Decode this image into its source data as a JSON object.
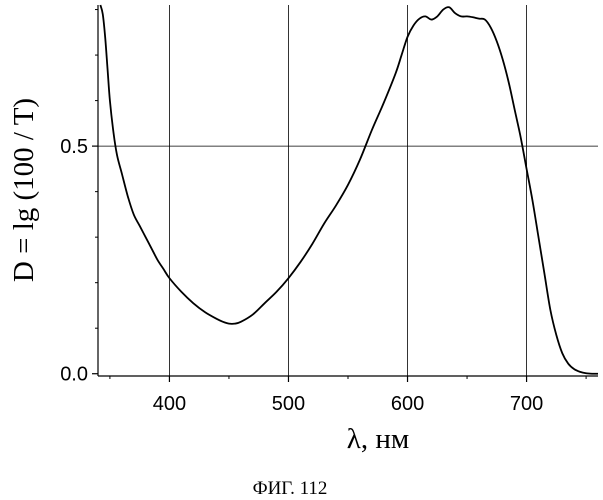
{
  "figure": {
    "caption": "ФИГ. 112"
  },
  "chart_data": {
    "type": "line",
    "xlabel": "λ, нм",
    "ylabel": "D = lg (100 / T)",
    "xlim": [
      340,
      760
    ],
    "ylim": [
      -0.005,
      0.81
    ],
    "xticks": [
      400,
      500,
      600,
      700
    ],
    "xtick_labels": [
      "400",
      "500",
      "600",
      "700"
    ],
    "yticks": [
      0.0,
      0.5
    ],
    "ytick_labels": [
      "0.0",
      "0.5"
    ],
    "grid": true,
    "series": [
      {
        "x": [
          342,
          344,
          346,
          348,
          350,
          353,
          356,
          360,
          365,
          370,
          375,
          380,
          385,
          390,
          395,
          400,
          410,
          420,
          430,
          440,
          445,
          450,
          455,
          460,
          470,
          480,
          490,
          500,
          510,
          520,
          530,
          540,
          550,
          560,
          570,
          580,
          590,
          595,
          600,
          605,
          610,
          615,
          620,
          625,
          630,
          635,
          640,
          645,
          650,
          655,
          660,
          665,
          670,
          675,
          680,
          685,
          690,
          695,
          700,
          705,
          710,
          715,
          720,
          725,
          730,
          735,
          740,
          745,
          750,
          755,
          760
        ],
        "y": [
          0.81,
          0.79,
          0.74,
          0.67,
          0.6,
          0.53,
          0.48,
          0.44,
          0.39,
          0.35,
          0.325,
          0.3,
          0.275,
          0.25,
          0.23,
          0.21,
          0.18,
          0.155,
          0.135,
          0.12,
          0.114,
          0.11,
          0.11,
          0.114,
          0.13,
          0.155,
          0.18,
          0.21,
          0.245,
          0.285,
          0.33,
          0.37,
          0.415,
          0.47,
          0.535,
          0.595,
          0.66,
          0.7,
          0.74,
          0.765,
          0.78,
          0.785,
          0.778,
          0.785,
          0.8,
          0.805,
          0.792,
          0.785,
          0.785,
          0.783,
          0.78,
          0.778,
          0.76,
          0.73,
          0.69,
          0.64,
          0.58,
          0.52,
          0.45,
          0.38,
          0.3,
          0.22,
          0.14,
          0.085,
          0.045,
          0.022,
          0.01,
          0.004,
          0.001,
          0.0,
          0.0
        ]
      }
    ]
  },
  "colors": {
    "background": "#ffffff",
    "line": "#000000",
    "grid": "#000000"
  }
}
